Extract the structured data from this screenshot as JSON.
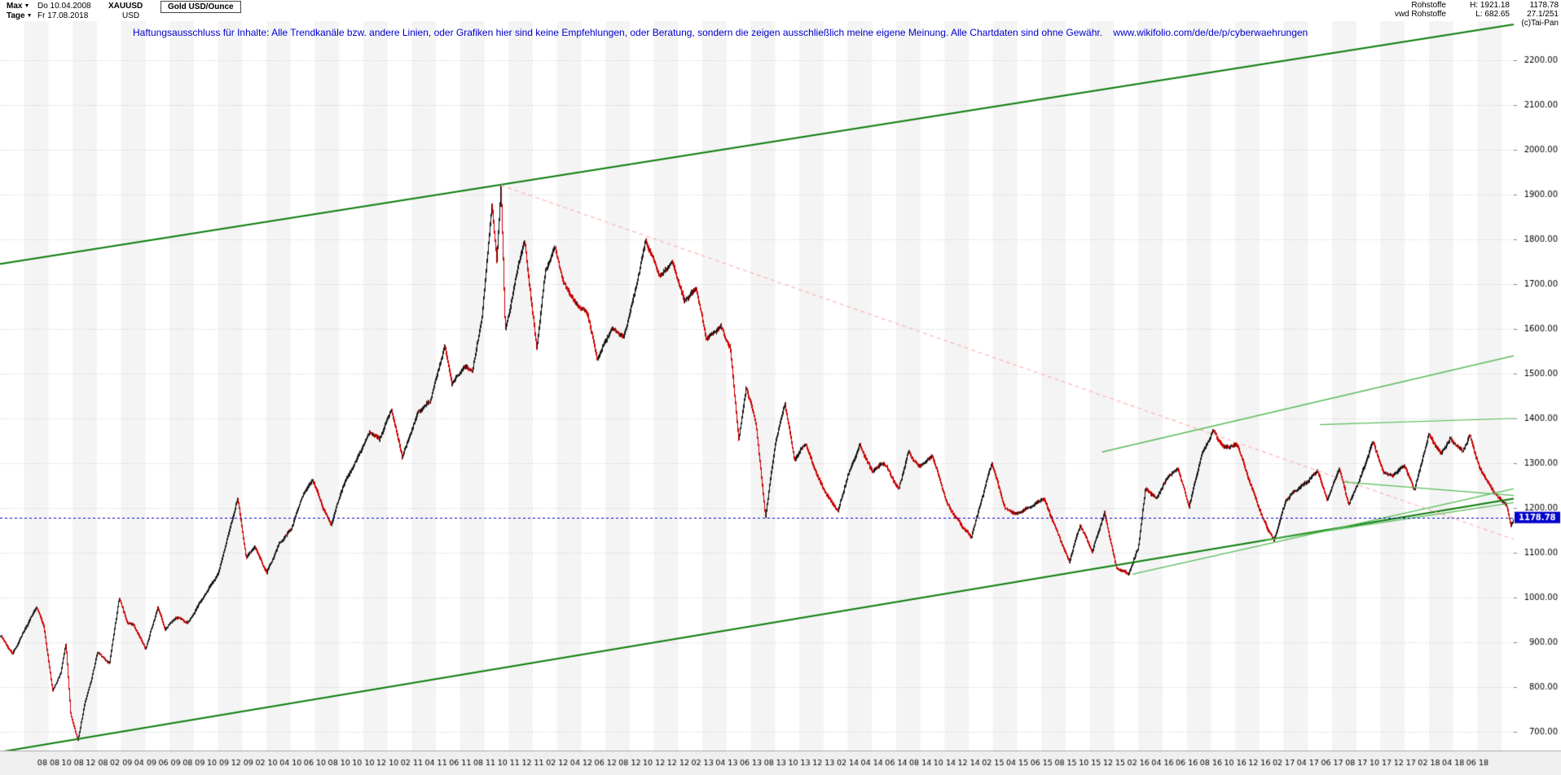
{
  "topbar": {
    "range_label": "Max",
    "period_label": "Tage",
    "date_start": "Do 10.04.2008",
    "date_end": "Fr 17.08.2018",
    "symbol": "XAUUSD",
    "currency": "USD",
    "instrument": "Gold USD/Ounce",
    "right": {
      "group": "Rohstoffe",
      "feed": "vwd Rohstoffe",
      "high": "H: 1921.18",
      "low": "L: 682.65",
      "last": "1178.78",
      "position": "27.1/251",
      "copyright": "(c)Tai-Pan"
    }
  },
  "disclaimer": {
    "text": "Haftungsausschluss für Inhalte: Alle Trendkanäle bzw. andere Linien, oder Grafiken hier sind keine Empfehlungen, oder Beratung, sondern die zeigen ausschließlich meine eigene Meinung. Alle Chartdaten sind ohne Gewähr.",
    "url": "www.wikifolio.com/de/de/p/cyberwaehrungen"
  },
  "chart_data": {
    "type": "candlestick",
    "title": "Gold USD/Ounce",
    "symbol": "XAUUSD",
    "currency": "USD",
    "range": {
      "from": "Do 10.04.2008",
      "to": "Fr 17.08.2018"
    },
    "high": 1921.18,
    "low": 682.65,
    "last": 1178.78,
    "y_axis": {
      "min": 700,
      "max": 2200,
      "step": 100,
      "tick_labels": [
        "2200.00",
        "2100.00",
        "2000.00",
        "1900.00",
        "1800.00",
        "1700.00",
        "1600.00",
        "1500.00",
        "1400.00",
        "1300.00",
        "1200.00",
        "1100.00",
        "1000.00",
        "900.00",
        "800.00",
        "700.00"
      ]
    },
    "x_axis": {
      "t_max": 125,
      "first_label_t": 4,
      "label_step_t": 2,
      "labels": [
        "08 08",
        "10 08",
        "12 08",
        "02 09",
        "04 09",
        "06 09",
        "08 09",
        "10 09",
        "12 09",
        "02 10",
        "04 10",
        "06 10",
        "08 10",
        "10 10",
        "12 10",
        "02 11",
        "04 11",
        "06 11",
        "08 11",
        "10 11",
        "12 11",
        "02 12",
        "04 12",
        "06 12",
        "08 12",
        "10 12",
        "12 12",
        "02 13",
        "04 13",
        "06 13",
        "08 13",
        "10 13",
        "12 13",
        "02 14",
        "04 14",
        "06 14",
        "08 14",
        "10 14",
        "12 14",
        "02 15",
        "04 15",
        "06 15",
        "08 15",
        "10 15",
        "12 15",
        "02 16",
        "04 16",
        "06 16",
        "08 16",
        "10 16",
        "12 16",
        "02 17",
        "04 17",
        "06 17",
        "08 17",
        "10 17",
        "12 17",
        "02 18",
        "04 18",
        "06 18"
      ]
    },
    "anchors": [
      [
        0,
        912
      ],
      [
        1,
        872
      ],
      [
        2,
        928
      ],
      [
        3,
        978
      ],
      [
        3.6,
        930
      ],
      [
        4.3,
        790
      ],
      [
        5,
        833
      ],
      [
        5.4,
        900
      ],
      [
        5.8,
        740
      ],
      [
        6.4,
        683
      ],
      [
        7,
        770
      ],
      [
        7.5,
        815
      ],
      [
        8,
        878
      ],
      [
        9,
        855
      ],
      [
        9.8,
        1002
      ],
      [
        10.5,
        945
      ],
      [
        11,
        938
      ],
      [
        12,
        883
      ],
      [
        13,
        978
      ],
      [
        13.6,
        928
      ],
      [
        14.5,
        955
      ],
      [
        15.5,
        940
      ],
      [
        17,
        1012
      ],
      [
        18,
        1055
      ],
      [
        19.6,
        1222
      ],
      [
        20.3,
        1090
      ],
      [
        21,
        1118
      ],
      [
        22,
        1058
      ],
      [
        23,
        1118
      ],
      [
        24,
        1152
      ],
      [
        25,
        1232
      ],
      [
        25.8,
        1262
      ],
      [
        26.6,
        1200
      ],
      [
        27.3,
        1158
      ],
      [
        28.3,
        1248
      ],
      [
        29.5,
        1312
      ],
      [
        30.5,
        1368
      ],
      [
        31.3,
        1352
      ],
      [
        32.3,
        1424
      ],
      [
        33.2,
        1318
      ],
      [
        34.5,
        1415
      ],
      [
        35.5,
        1440
      ],
      [
        36.7,
        1565
      ],
      [
        37.3,
        1478
      ],
      [
        38.3,
        1512
      ],
      [
        39,
        1502
      ],
      [
        39.8,
        1628
      ],
      [
        40.6,
        1878
      ],
      [
        41,
        1750
      ],
      [
        41.35,
        1921
      ],
      [
        41.7,
        1592
      ],
      [
        42.2,
        1655
      ],
      [
        42.8,
        1742
      ],
      [
        43.3,
        1795
      ],
      [
        44.3,
        1560
      ],
      [
        45,
        1730
      ],
      [
        45.8,
        1785
      ],
      [
        46.5,
        1705
      ],
      [
        47.5,
        1662
      ],
      [
        48.5,
        1640
      ],
      [
        49.3,
        1532
      ],
      [
        50.5,
        1598
      ],
      [
        51.5,
        1580
      ],
      [
        52.5,
        1692
      ],
      [
        53.3,
        1792
      ],
      [
        54.5,
        1712
      ],
      [
        55.5,
        1752
      ],
      [
        56.5,
        1664
      ],
      [
        57.5,
        1690
      ],
      [
        58.3,
        1578
      ],
      [
        59.5,
        1612
      ],
      [
        60.3,
        1560
      ],
      [
        61,
        1352
      ],
      [
        61.6,
        1470
      ],
      [
        62.4,
        1392
      ],
      [
        63.2,
        1182
      ],
      [
        64,
        1342
      ],
      [
        64.8,
        1432
      ],
      [
        65.6,
        1302
      ],
      [
        66.5,
        1342
      ],
      [
        67.5,
        1270
      ],
      [
        68.4,
        1222
      ],
      [
        69.2,
        1192
      ],
      [
        70,
        1272
      ],
      [
        71,
        1345
      ],
      [
        72,
        1285
      ],
      [
        73,
        1302
      ],
      [
        74.2,
        1242
      ],
      [
        75,
        1328
      ],
      [
        75.9,
        1292
      ],
      [
        77,
        1312
      ],
      [
        78.2,
        1208
      ],
      [
        79.2,
        1168
      ],
      [
        80.2,
        1132
      ],
      [
        81,
        1210
      ],
      [
        81.9,
        1302
      ],
      [
        83,
        1202
      ],
      [
        84,
        1188
      ],
      [
        85,
        1202
      ],
      [
        86.2,
        1225
      ],
      [
        87,
        1170
      ],
      [
        88.3,
        1078
      ],
      [
        89.2,
        1160
      ],
      [
        90.2,
        1102
      ],
      [
        91.2,
        1188
      ],
      [
        92.2,
        1062
      ],
      [
        93.2,
        1050
      ],
      [
        94,
        1112
      ],
      [
        94.6,
        1245
      ],
      [
        95.5,
        1222
      ],
      [
        96.5,
        1272
      ],
      [
        97.3,
        1290
      ],
      [
        98.2,
        1208
      ],
      [
        99.2,
        1318
      ],
      [
        100.2,
        1372
      ],
      [
        101,
        1335
      ],
      [
        102.2,
        1342
      ],
      [
        103.3,
        1248
      ],
      [
        104.3,
        1172
      ],
      [
        105.2,
        1125
      ],
      [
        106.2,
        1218
      ],
      [
        107,
        1238
      ],
      [
        108,
        1258
      ],
      [
        108.8,
        1286
      ],
      [
        109.6,
        1222
      ],
      [
        110.6,
        1292
      ],
      [
        111.4,
        1208
      ],
      [
        112.4,
        1272
      ],
      [
        113.4,
        1352
      ],
      [
        114.2,
        1282
      ],
      [
        115,
        1268
      ],
      [
        116,
        1292
      ],
      [
        116.8,
        1238
      ],
      [
        118,
        1362
      ],
      [
        119,
        1318
      ],
      [
        119.8,
        1352
      ],
      [
        120.8,
        1328
      ],
      [
        121.4,
        1365
      ],
      [
        122.2,
        1292
      ],
      [
        123,
        1252
      ],
      [
        123.8,
        1222
      ],
      [
        124.4,
        1212
      ],
      [
        124.8,
        1162
      ],
      [
        125,
        1179
      ]
    ],
    "last_price_line": {
      "value": 1178.78,
      "label": "1178.78",
      "color": "#0000cc"
    },
    "trendlines": [
      {
        "name": "channel-upper",
        "t1": 0,
        "p1": 1745,
        "t2": 125,
        "p2": 2280,
        "color": "#0a7d0a",
        "width": 2
      },
      {
        "name": "channel-lower",
        "t1": 0,
        "p1": 655,
        "t2": 125,
        "p2": 1221,
        "color": "#0a7d0a",
        "width": 2
      },
      {
        "name": "broken-support-from-peak",
        "t1": 41.35,
        "p1": 1921,
        "t2": 125,
        "p2": 1130,
        "color": "#ffb3b3",
        "width": 1.2,
        "dash": [
          5,
          4
        ]
      },
      {
        "name": "rising-resistance",
        "t1": 91,
        "p1": 1325,
        "t2": 125,
        "p2": 1540,
        "color": "#58bb58",
        "width": 1.3
      },
      {
        "name": "rising-support-2016",
        "t1": 93.5,
        "p1": 1052,
        "t2": 125,
        "p2": 1243,
        "color": "#58bb58",
        "width": 1.3
      },
      {
        "name": "rising-support-2017",
        "t1": 104.5,
        "p1": 1128,
        "t2": 125,
        "p2": 1212,
        "color": "#58bb58",
        "width": 1.3
      },
      {
        "name": "minor-trendline",
        "t1": 111,
        "p1": 1258,
        "t2": 125,
        "p2": 1228,
        "color": "#58bb58",
        "width": 1.2
      },
      {
        "name": "recent-highs-line",
        "t1": 109,
        "p1": 1386,
        "t2": 125,
        "p2": 1400,
        "color": "#58bb58",
        "width": 1.2
      }
    ],
    "colors": {
      "up": "#151515",
      "down": "#cc0000",
      "grid": "#c9c9c9",
      "stripe": "#f4f4f4",
      "axis_bg": "#efefef",
      "axis_text": "#000000",
      "background": "#ffffff"
    },
    "legend_position": "none",
    "grid": "horizontal-dotted"
  }
}
